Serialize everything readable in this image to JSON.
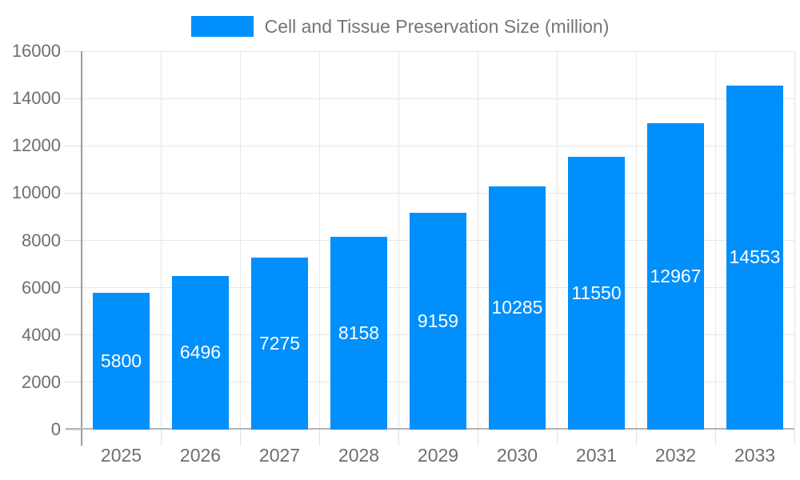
{
  "chart_data": {
    "type": "bar",
    "title": "Cell and Tissue Preservation Size (million)",
    "legend": {
      "label": "Cell and Tissue Preservation Size (million)",
      "position": "top"
    },
    "categories": [
      "2025",
      "2026",
      "2027",
      "2028",
      "2029",
      "2030",
      "2031",
      "2032",
      "2033"
    ],
    "series": [
      {
        "name": "Cell and Tissue Preservation Size (million)",
        "values": [
          5800,
          6496,
          7275,
          8158,
          9159,
          10285,
          11550,
          12967,
          14553
        ]
      }
    ],
    "value_labels": [
      "5800",
      "6496",
      "7275",
      "8158",
      "9159",
      "10285",
      "11550",
      "12967",
      "14553"
    ],
    "xlabel": "",
    "ylabel": "",
    "ylim": [
      0,
      16000
    ],
    "ytick_step": 2000,
    "ytick_labels": [
      "0",
      "2000",
      "4000",
      "6000",
      "8000",
      "10000",
      "12000",
      "14000",
      "16000"
    ],
    "grid": true,
    "colors": {
      "bar": "#008FFB",
      "bar_label": "#FFFFFF",
      "legend_text": "#757575",
      "axis_text": "#6E6E6E",
      "grid": "#E7E7E7",
      "y_axis_line": "#9E9E9E",
      "x_axis_line": "#B5B5B5",
      "tick": "#E0E0E0",
      "background": "#FFFFFF"
    }
  }
}
